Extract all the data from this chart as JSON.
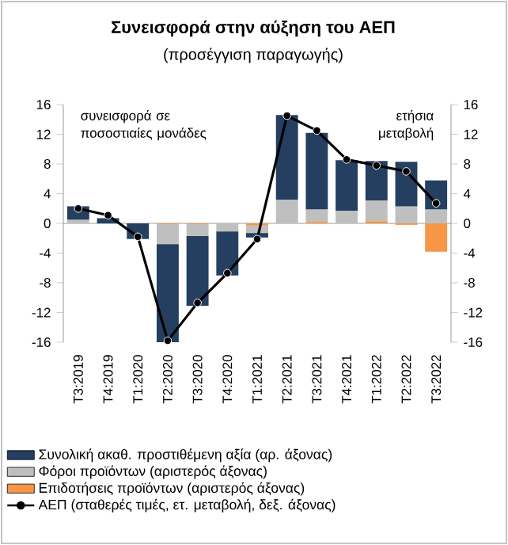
{
  "chart_data": {
    "type": "bar",
    "title": "Συνεισφορά στην αύξηση του ΑΕΠ",
    "subtitle": "(προσέγγιση παραγωγής)",
    "ylabel": "συνεισφορά σε ποσοστιαίες μονάδες",
    "y2label": "ετήσια μεταβολή",
    "categories": [
      "T3:2019",
      "T4:2019",
      "T1:2020",
      "T2:2020",
      "T3:2020",
      "T4:2020",
      "T1:2021",
      "T2:2021",
      "T3:2021",
      "T4:2021",
      "T1:2022",
      "T2:2022",
      "T3:2022"
    ],
    "stacked": true,
    "series": [
      {
        "name": "Επιδοτήσεις προϊόντων (αριστερός άξονας)",
        "color": "#f79646",
        "values": [
          null,
          null,
          null,
          -0.1,
          -0.1,
          null,
          -0.3,
          null,
          0.2,
          null,
          0.3,
          -0.2,
          -3.8
        ]
      },
      {
        "name": "Φόροι προϊόντων (αριστερός άξονας)",
        "color": "#bfbfbf",
        "values": [
          0.5,
          null,
          null,
          -2.7,
          -1.6,
          -1.1,
          -1.0,
          3.2,
          1.7,
          1.7,
          2.8,
          2.3,
          1.9
        ]
      },
      {
        "name": "Συνολική ακαθ. προστιθέμενη αξία (αρ. άξονας)",
        "color": "#243f60",
        "values": [
          1.8,
          0.7,
          -2.1,
          -13.2,
          -9.4,
          -5.9,
          -0.6,
          11.4,
          10.3,
          6.8,
          5.3,
          6.0,
          3.9
        ]
      },
      {
        "name": "ΑΕΠ (σταθερές τιμές, ετ. μεταβολή, δεξ. άξονας)",
        "type": "line",
        "axis": "y2",
        "color": "#000000",
        "values": [
          2.0,
          1.1,
          -1.8,
          -15.8,
          -10.7,
          -6.7,
          -2.1,
          14.5,
          12.5,
          8.6,
          7.8,
          7.0,
          2.7
        ]
      }
    ],
    "ylim": [
      -16,
      16
    ],
    "yticks": [
      -16,
      -12,
      -8,
      -4,
      0,
      4,
      8,
      12,
      16
    ],
    "y2lim": [
      -16,
      16
    ],
    "y2ticks": [
      -16,
      -12,
      -8,
      -4,
      0,
      4,
      8,
      12,
      16
    ],
    "marker": "circle",
    "legend": "bottom"
  }
}
